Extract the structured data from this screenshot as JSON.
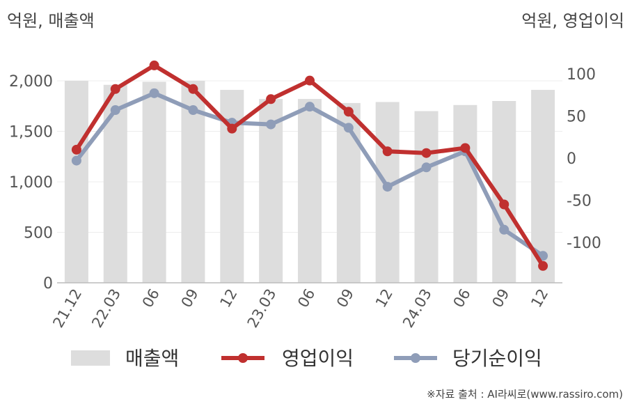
{
  "chart_data": {
    "type": "bar+line",
    "left_axis_unit": "억원, 매출액",
    "right_axis_unit": "억원, 영업이익",
    "categories": [
      "21.12",
      "22.03",
      "06",
      "09",
      "12",
      "23.03",
      "06",
      "09",
      "12",
      "24.03",
      "06",
      "09",
      "12"
    ],
    "left_ticks": [
      "0",
      "500",
      "1,000",
      "1,500",
      "2,000"
    ],
    "right_ticks": [
      "-100",
      "-50",
      "0",
      "50",
      "100"
    ],
    "left_ylim": [
      0,
      2000
    ],
    "right_ylim": [
      -148,
      100
    ],
    "series": [
      {
        "name": "매출액",
        "kind": "bar",
        "axis": "left",
        "color": "#dddddd",
        "values": [
          2000,
          1960,
          1990,
          2000,
          1910,
          1820,
          1820,
          1780,
          1790,
          1700,
          1760,
          1800,
          1910
        ]
      },
      {
        "name": "영업이익",
        "kind": "line",
        "axis": "right",
        "color": "#c0302f",
        "values": [
          10,
          82,
          110,
          82,
          35,
          70,
          92,
          55,
          8,
          6,
          12,
          -55,
          -128
        ]
      },
      {
        "name": "당기순이익",
        "kind": "line",
        "axis": "right",
        "color": "#8f9db8",
        "values": [
          -3,
          57,
          77,
          57,
          42,
          40,
          61,
          36,
          -34,
          -11,
          8,
          -85,
          -116
        ]
      }
    ],
    "grid": true,
    "legend_position": "bottom"
  },
  "source": "※자료 출처 : AI라씨로(www.rassiro.com)"
}
